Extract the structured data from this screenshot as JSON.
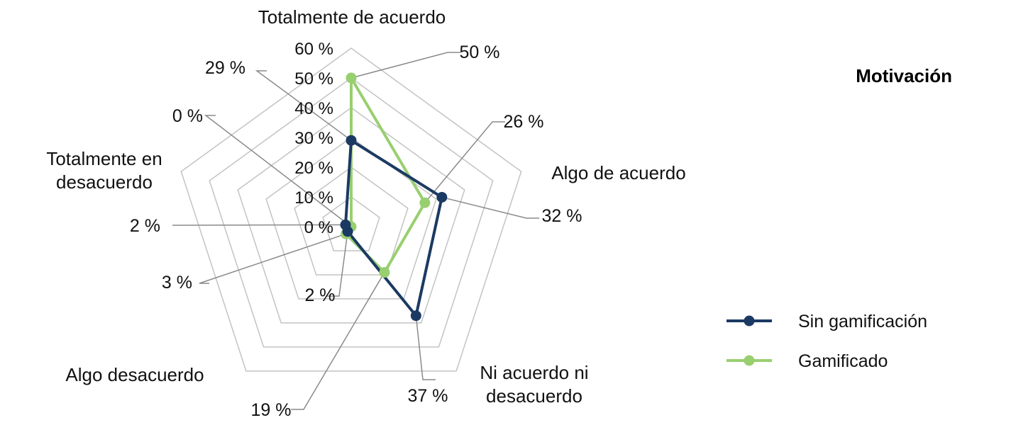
{
  "title": "Motivación",
  "chart_data": {
    "type": "radar",
    "title": "Motivación",
    "categories": [
      "Totalmente de acuerdo",
      "Algo de acuerdo",
      "Ni acuerdo ni desacuerdo",
      "Algo desacuerdo",
      "Totalmente en desacuerdo"
    ],
    "category_lines": [
      [
        "Totalmente de acuerdo"
      ],
      [
        "Algo de acuerdo"
      ],
      [
        "Ni acuerdo ni",
        "desacuerdo"
      ],
      [
        "Algo desacuerdo"
      ],
      [
        "Totalmente en",
        "desacuerdo"
      ]
    ],
    "radial_ticks": [
      "0 %",
      "10 %",
      "20 %",
      "30 %",
      "40 %",
      "50 %",
      "60 %"
    ],
    "rmax": 60,
    "series": [
      {
        "name": "Sin gamificación",
        "color": "#1b3a63",
        "values": [
          29,
          32,
          37,
          2,
          2
        ],
        "labels": [
          "29 %",
          "32 %",
          "37 %",
          "2 %",
          "2 %"
        ]
      },
      {
        "name": "Gamificado",
        "color": "#98cf6f",
        "values": [
          50,
          26,
          19,
          3,
          0
        ],
        "labels": [
          "50 %",
          "26 %",
          "19 %",
          "3 %",
          "0 %"
        ]
      }
    ],
    "legend_position": "right"
  }
}
